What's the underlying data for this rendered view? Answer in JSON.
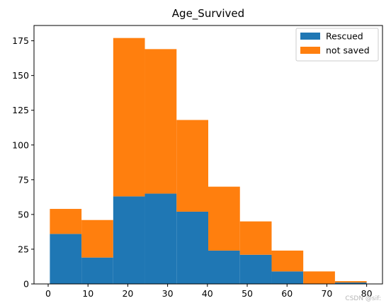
{
  "chart_data": {
    "type": "bar",
    "subtype": "stacked-histogram",
    "title": "Age_Survived",
    "xlabel": "",
    "ylabel": "",
    "bins": [
      [
        0.42,
        8.38
      ],
      [
        8.38,
        16.34
      ],
      [
        16.34,
        24.29
      ],
      [
        24.29,
        32.25
      ],
      [
        32.25,
        40.21
      ],
      [
        40.21,
        48.17
      ],
      [
        48.17,
        56.13
      ],
      [
        56.13,
        64.08
      ],
      [
        64.08,
        72.04
      ],
      [
        72.04,
        80.0
      ]
    ],
    "series": [
      {
        "name": "Rescued",
        "values": [
          36,
          19,
          63,
          65,
          52,
          24,
          21,
          9,
          0,
          1
        ],
        "color": "#1f77b4"
      },
      {
        "name": "not saved",
        "values": [
          18,
          27,
          114,
          104,
          66,
          46,
          24,
          15,
          9,
          1
        ],
        "color": "#ff7f0e"
      }
    ],
    "stacked_totals": [
      54,
      46,
      177,
      169,
      118,
      70,
      45,
      24,
      9,
      2
    ],
    "xlim": [
      -3.56,
      83.98
    ],
    "ylim": [
      0,
      186
    ],
    "x_ticks": [
      0,
      10,
      20,
      30,
      40,
      50,
      60,
      70,
      80
    ],
    "y_ticks": [
      0,
      25,
      50,
      75,
      100,
      125,
      150,
      175
    ],
    "grid": false,
    "legend_position": "top-right"
  },
  "watermark": "CSDN @sif:"
}
